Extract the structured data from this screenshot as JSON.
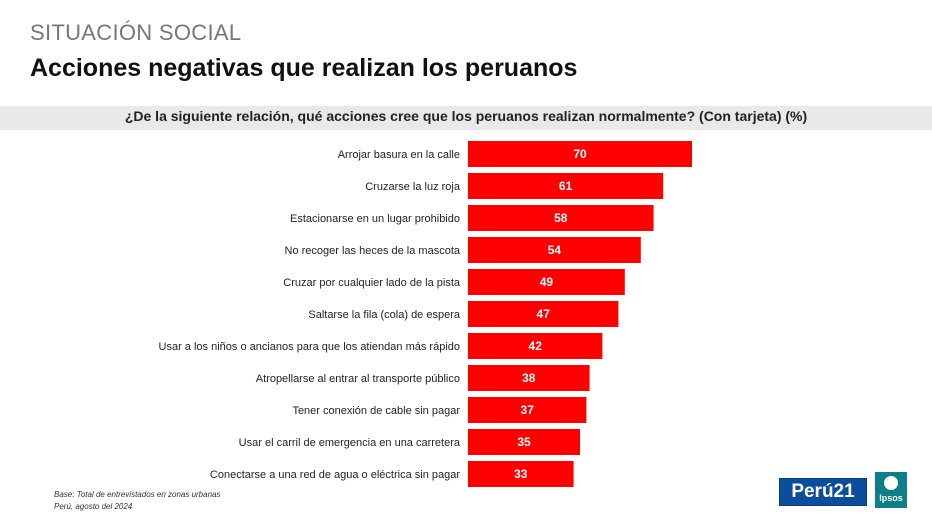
{
  "header": {
    "kicker": "SITUACIÓN SOCIAL",
    "title": "Acciones negativas que realizan los peruanos"
  },
  "question": "¿De la siguiente relación, qué acciones cree que los peruanos realizan normalmente? (Con tarjeta) (%)",
  "chart_data": {
    "type": "bar",
    "orientation": "horizontal",
    "categories": [
      "Arrojar basura en la calle",
      "Cruzarse la luz roja",
      "Estacionarse en un lugar prohibido",
      "No recoger las heces de la mascota",
      "Cruzar por cualquier lado de la pista",
      "Saltarse la fila (cola) de espera",
      "Usar a los niños o ancianos para que los atiendan más rápido",
      "Atropellarse al entrar al transporte público",
      "Tener conexión de cable sin pagar",
      "Usar el carril de emergencia en una carretera",
      "Conectarse a una red de agua o eléctrica sin pagar"
    ],
    "values": [
      70,
      61,
      58,
      54,
      49,
      47,
      42,
      38,
      37,
      35,
      33
    ],
    "data_labels": true,
    "bar_color": "#ff0000",
    "grid": false,
    "legend": "none"
  },
  "footnotes": {
    "base": "Base: Total de entrevistados en zonas urbanas",
    "source": "Perú, agosto del 2024"
  },
  "logos": {
    "peru21": "Perú21",
    "ipsos": "Ipsos"
  }
}
